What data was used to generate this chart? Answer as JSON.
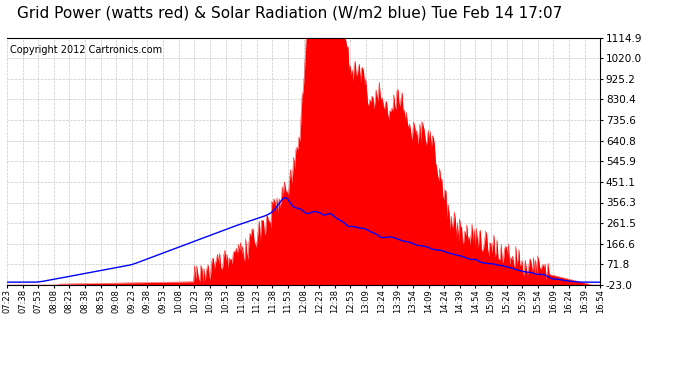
{
  "title": "Grid Power (watts red) & Solar Radiation (W/m2 blue) Tue Feb 14 17:07",
  "copyright_text": "Copyright 2012 Cartronics.com",
  "ymin": -23.0,
  "ymax": 1114.9,
  "yticks": [
    -23.0,
    71.8,
    166.6,
    261.5,
    356.3,
    451.1,
    545.9,
    640.8,
    735.6,
    830.4,
    925.2,
    1020.0,
    1114.9
  ],
  "x_labels": [
    "07:23",
    "07:38",
    "07:53",
    "08:08",
    "08:23",
    "08:38",
    "08:53",
    "09:08",
    "09:23",
    "09:38",
    "09:53",
    "10:08",
    "10:23",
    "10:38",
    "10:53",
    "11:08",
    "11:23",
    "11:38",
    "11:53",
    "12:08",
    "12:23",
    "12:38",
    "12:53",
    "13:09",
    "13:24",
    "13:39",
    "13:54",
    "14:09",
    "14:24",
    "14:39",
    "14:54",
    "15:09",
    "15:24",
    "15:39",
    "15:54",
    "16:09",
    "16:24",
    "16:39",
    "16:54"
  ],
  "background_color": "#ffffff",
  "fill_color_red": "#ff0000",
  "line_color_blue": "#0000ff",
  "grid_color": "#c8c8c8",
  "title_fontsize": 11,
  "copyright_fontsize": 7
}
